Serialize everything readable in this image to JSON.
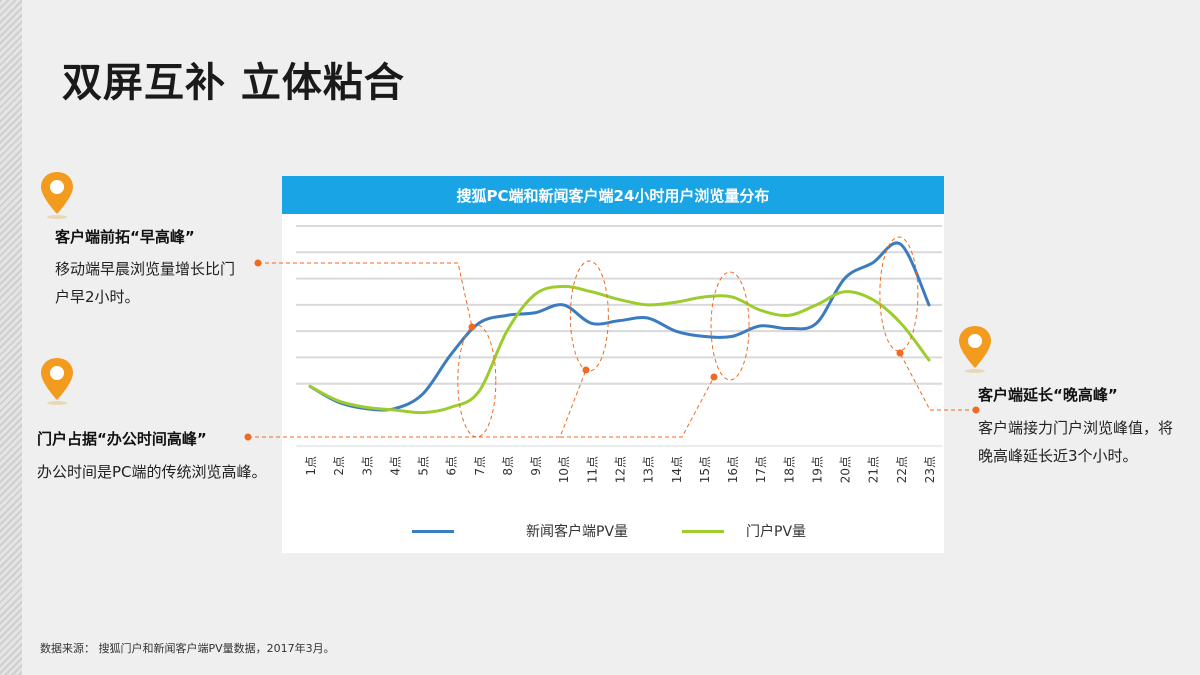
{
  "page": {
    "title": "双屏互补 立体粘合",
    "source": "数据来源： 搜狐门户和新闻客户端PV量数据，2017年3月。"
  },
  "annotations": {
    "left_top": {
      "heading": "客户端前拓“早高峰”",
      "body": "移动端早晨浏览量增长比门户早2小时。"
    },
    "left_bottom": {
      "heading": "门户占据“办公时间高峰”",
      "body": "办公时间是PC端的传统浏览高峰。"
    },
    "right": {
      "heading": "客户端延长“晚高峰”",
      "body": "客户端接力门户浏览峰值，将晚高峰延长近3个小时。"
    }
  },
  "colors": {
    "accent": "#19a4e6",
    "pin": "#f39b1f",
    "callout": "#f06a20",
    "news": "#3b7bbf",
    "portal": "#9ccc2d"
  },
  "icons": {
    "pin": "location-pin-icon"
  },
  "chart_data": {
    "type": "line",
    "title": "搜狐PC端和新闻客户端24小时用户浏览量分布",
    "xlabel": "",
    "ylabel": "",
    "categories": [
      "1点",
      "2点",
      "3点",
      "4点",
      "5点",
      "6点",
      "7点",
      "8点",
      "9点",
      "10点",
      "11点",
      "12点",
      "13点",
      "14点",
      "15点",
      "16点",
      "17点",
      "18点",
      "19点",
      "20点",
      "21点",
      "22点",
      "23点"
    ],
    "ylim": [
      0,
      7
    ],
    "grid": true,
    "legend": "bottom",
    "series": [
      {
        "name": "新闻客户端PV量",
        "values": [
          0.9,
          0.3,
          0.05,
          0.05,
          0.6,
          2.1,
          3.3,
          3.6,
          3.7,
          4.0,
          3.3,
          3.4,
          3.5,
          3.0,
          2.8,
          2.8,
          3.2,
          3.1,
          3.3,
          5.0,
          5.6,
          6.3,
          4.0
        ]
      },
      {
        "name": "门户PV量",
        "values": [
          0.9,
          0.35,
          0.1,
          0.0,
          -0.1,
          0.1,
          0.7,
          3.0,
          4.4,
          4.7,
          4.5,
          4.2,
          4.0,
          4.1,
          4.3,
          4.3,
          3.8,
          3.6,
          4.0,
          4.5,
          4.2,
          3.3,
          1.9
        ]
      }
    ]
  }
}
